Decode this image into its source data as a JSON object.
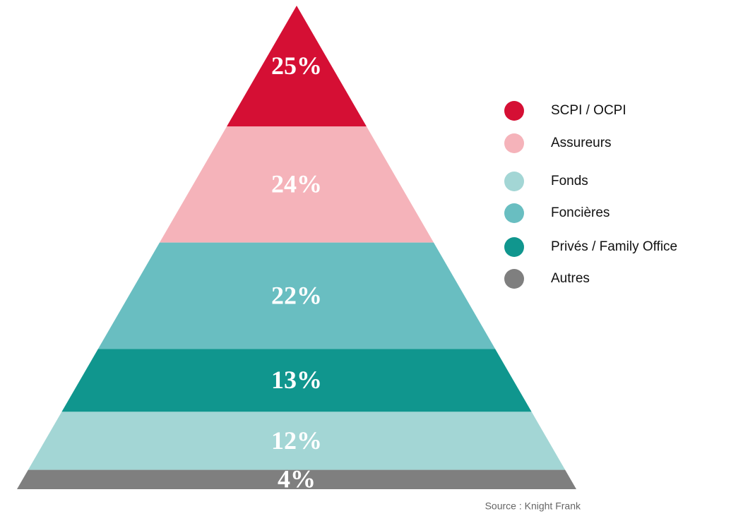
{
  "chart_data": {
    "type": "pyramid",
    "series": [
      {
        "name": "SCPI / OCPI",
        "color": "#d50f34",
        "value": 25,
        "value_label": "25%"
      },
      {
        "name": "Assureurs",
        "color": "#f5b3ba",
        "value": 24,
        "value_label": "24%"
      },
      {
        "name": "Foncières",
        "color": "#69bec1",
        "value": 22,
        "value_label": "22%"
      },
      {
        "name": "Privés / Family Office",
        "color": "#10968e",
        "value": 13,
        "value_label": "13%"
      },
      {
        "name": "Fonds",
        "color": "#a3d6d5",
        "value": 12,
        "value_label": "12%"
      },
      {
        "name": "Autres",
        "color": "#7f7f7f",
        "value": 4,
        "value_label": "4%"
      }
    ],
    "legend": [
      {
        "name": "SCPI / OCPI",
        "color": "#d50f34"
      },
      {
        "name": "Assureurs",
        "color": "#f5b3ba"
      },
      {
        "name": "Fonds",
        "color": "#a3d6d5"
      },
      {
        "name": "Foncières",
        "color": "#69bec1"
      },
      {
        "name": "Privés / Family Office",
        "color": "#10968e"
      },
      {
        "name": "Autres",
        "color": "#7f7f7f"
      }
    ],
    "source": "Source : Knight Frank"
  }
}
